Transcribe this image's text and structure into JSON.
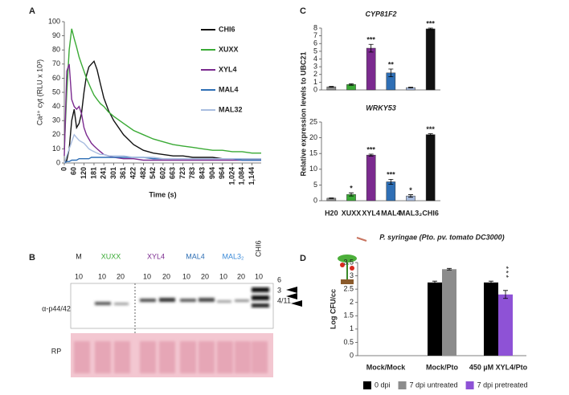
{
  "chart_data": [
    {
      "type": "line",
      "panel_label": "A",
      "x_label": "Time (s)",
      "y_label": "Ca²⁺ cyt (RLU x 10³)",
      "x": [
        0,
        15,
        30,
        45,
        60,
        75,
        90,
        105,
        120,
        135,
        150,
        165,
        181,
        200,
        220,
        241,
        270,
        301,
        361,
        422,
        482,
        542,
        602,
        663,
        723,
        783,
        843,
        904,
        964,
        1024,
        1084,
        1144,
        1200
      ],
      "xlim": [
        0,
        1200
      ],
      "xticks": [
        0,
        60,
        120,
        181,
        241,
        301,
        361,
        422,
        482,
        542,
        602,
        663,
        723,
        783,
        843,
        904,
        964,
        {
          "value": 1024,
          "label": "1,024"
        },
        {
          "value": 1084,
          "label": "1,084"
        },
        {
          "value": 1144,
          "label": "1,144"
        }
      ],
      "ylim": [
        0,
        100
      ],
      "yticks": [
        0,
        10,
        20,
        30,
        40,
        50,
        60,
        70,
        80,
        90,
        100
      ],
      "series": [
        {
          "name": "CHI6",
          "color": "#111111",
          "values": [
            0,
            2,
            10,
            30,
            38,
            25,
            28,
            35,
            50,
            62,
            68,
            70,
            72,
            66,
            56,
            46,
            37,
            30,
            20,
            13,
            9,
            7,
            6,
            5,
            5,
            4,
            4,
            4,
            3,
            3,
            3,
            3,
            3
          ]
        },
        {
          "name": "XUXX",
          "color": "#3aaa35",
          "values": [
            10,
            50,
            80,
            95,
            88,
            82,
            75,
            70,
            65,
            60,
            56,
            52,
            48,
            45,
            42,
            40,
            36,
            33,
            28,
            23,
            20,
            17,
            15,
            13,
            12,
            11,
            10,
            9,
            9,
            8,
            8,
            7,
            7
          ]
        },
        {
          "name": "XYL4",
          "color": "#7b2a8f",
          "values": [
            5,
            65,
            70,
            45,
            40,
            38,
            40,
            35,
            25,
            20,
            17,
            14,
            12,
            10,
            8,
            6,
            5,
            4,
            3,
            3,
            2,
            2,
            2,
            2,
            2,
            2,
            2,
            2,
            2,
            2,
            2,
            2,
            2
          ]
        },
        {
          "name": "MAL4",
          "color": "#2f6fb5",
          "values": [
            0,
            1,
            1,
            2,
            2,
            2,
            3,
            3,
            3,
            3,
            3,
            4,
            4,
            4,
            4,
            4,
            4,
            4,
            4,
            4,
            4,
            3,
            3,
            3,
            3,
            3,
            3,
            3,
            3,
            3,
            2,
            2,
            2
          ]
        },
        {
          "name": "MAL32",
          "color": "#a9bde0",
          "values": [
            0,
            5,
            10,
            15,
            20,
            18,
            16,
            15,
            14,
            12,
            10,
            9,
            8,
            7,
            6,
            6,
            5,
            5,
            5,
            4,
            4,
            4,
            3,
            3,
            3,
            3,
            3,
            3,
            3,
            3,
            3,
            3,
            3
          ]
        }
      ]
    },
    {
      "type": "bar",
      "panel_label": "C",
      "title": "CYP81F2",
      "y_label": "Relative expression levels to UBC21",
      "values": [
        0.4,
        0.7,
        5.4,
        2.2,
        0.3,
        7.9
      ],
      "errors": [
        0.05,
        0.1,
        0.5,
        0.5,
        0.05,
        0.1
      ],
      "colors": [
        "#8c8c8c",
        "#3aaa35",
        "#7b2a8f",
        "#2f6fb5",
        "#a9bde0",
        "#111111"
      ],
      "significance": [
        null,
        null,
        "***",
        "**",
        null,
        "***"
      ],
      "ylim": [
        0,
        8
      ],
      "yticks": [
        0,
        1,
        2,
        3,
        4,
        5,
        6,
        7,
        8
      ]
    },
    {
      "type": "bar",
      "title": "WRKY53",
      "categories": [
        "H20",
        "XUXX",
        "XYL4",
        "MAL4",
        "MAL3₂",
        "CHI6"
      ],
      "values": [
        0.8,
        2,
        14.5,
        6,
        1.5,
        21
      ],
      "errors": [
        0.1,
        0.5,
        0.3,
        0.8,
        0.4,
        0.3
      ],
      "colors": [
        "#8c8c8c",
        "#3aaa35",
        "#7b2a8f",
        "#2f6fb5",
        "#a9bde0",
        "#111111"
      ],
      "significance": [
        null,
        "*",
        "***",
        "***",
        "*",
        "***"
      ],
      "ylim": [
        0,
        25
      ],
      "yticks": [
        0,
        5,
        10,
        15,
        20,
        25
      ]
    },
    {
      "type": "grouped_bar",
      "panel_label": "D",
      "title": "P. syringae (Pto. pv. tomato DC3000)",
      "y_label": "Log CFU/cc",
      "categories": [
        "Mock/Mock",
        "Mock/Pto",
        "450 µM XYL4/Pto"
      ],
      "series": [
        {
          "name": "0 dpi",
          "color": "#000000",
          "values": [
            null,
            2.75,
            2.75
          ],
          "errors": [
            null,
            0.05,
            0.05
          ]
        },
        {
          "name": "7 dpi untreated",
          "color": "#8c8c8c",
          "values": [
            null,
            3.25,
            null
          ],
          "errors": [
            null,
            0.03,
            null
          ]
        },
        {
          "name": "7 dpi pretreated",
          "color": "#8e52d6",
          "values": [
            null,
            null,
            2.3
          ],
          "errors": [
            null,
            null,
            0.15
          ],
          "significance": [
            null,
            null,
            "***"
          ]
        }
      ],
      "ylim": [
        0,
        3.5
      ],
      "yticks": [
        0,
        0.5,
        1,
        1.5,
        2,
        2.5,
        3,
        3.5
      ]
    }
  ],
  "blot": {
    "panel_label": "B",
    "groups": [
      "M",
      "XUXX",
      "XYL4",
      "MAL4",
      "MAL3₂",
      "CHI6"
    ],
    "lanes": [
      "10",
      "10",
      "20",
      "10",
      "20",
      "10",
      "20",
      "10",
      "20",
      "10"
    ],
    "antibody": "α-p44/42",
    "loading": "RP",
    "markers": [
      "6",
      "3",
      "4/11"
    ]
  }
}
